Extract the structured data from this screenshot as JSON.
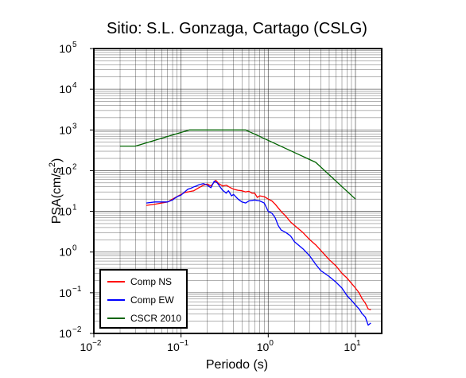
{
  "chart_data": {
    "type": "line",
    "title": "Sitio: S.L. Gonzaga, Cartago (CSLG)",
    "xlabel": "Periodo (s)",
    "ylabel": "PSA(cm/s2)",
    "ylabel_parts": {
      "base": "PSA(cm/s",
      "sup": "2",
      "end": ")"
    },
    "x_scale": "log",
    "y_scale": "log",
    "xlim": [
      0.01,
      20
    ],
    "ylim": [
      0.01,
      100000
    ],
    "x_ticks": [
      {
        "value": 0.01,
        "base": "10",
        "exp": "−2"
      },
      {
        "value": 0.1,
        "base": "10",
        "exp": "−1"
      },
      {
        "value": 1,
        "base": "10",
        "exp": "0"
      },
      {
        "value": 10,
        "base": "10",
        "exp": "1"
      }
    ],
    "y_ticks": [
      {
        "value": 0.01,
        "base": "10",
        "exp": "−2"
      },
      {
        "value": 0.1,
        "base": "10",
        "exp": "−1"
      },
      {
        "value": 1,
        "base": "10",
        "exp": "0"
      },
      {
        "value": 10,
        "base": "10",
        "exp": "1"
      },
      {
        "value": 100,
        "base": "10",
        "exp": "2"
      },
      {
        "value": 1000,
        "base": "10",
        "exp": "3"
      },
      {
        "value": 10000,
        "base": "10",
        "exp": "4"
      },
      {
        "value": 100000,
        "base": "10",
        "exp": "5"
      }
    ],
    "grid": true,
    "legend_position": "bottom-left",
    "series": [
      {
        "name": "Comp NS",
        "color": "#ff0000",
        "points": [
          [
            0.04,
            14
          ],
          [
            0.05,
            15
          ],
          [
            0.06,
            16
          ],
          [
            0.07,
            17
          ],
          [
            0.08,
            20
          ],
          [
            0.09,
            23
          ],
          [
            0.1,
            26
          ],
          [
            0.11,
            29
          ],
          [
            0.12,
            30
          ],
          [
            0.13,
            31
          ],
          [
            0.14,
            32
          ],
          [
            0.15,
            35
          ],
          [
            0.16,
            38
          ],
          [
            0.18,
            44
          ],
          [
            0.2,
            47
          ],
          [
            0.22,
            42
          ],
          [
            0.24,
            52
          ],
          [
            0.25,
            58
          ],
          [
            0.27,
            48
          ],
          [
            0.3,
            42
          ],
          [
            0.33,
            44
          ],
          [
            0.37,
            38
          ],
          [
            0.4,
            35
          ],
          [
            0.45,
            33
          ],
          [
            0.5,
            32
          ],
          [
            0.55,
            30
          ],
          [
            0.6,
            31
          ],
          [
            0.65,
            28
          ],
          [
            0.7,
            28
          ],
          [
            0.75,
            22
          ],
          [
            0.8,
            24
          ],
          [
            0.9,
            23
          ],
          [
            1.0,
            20
          ],
          [
            1.1,
            18
          ],
          [
            1.2,
            15
          ],
          [
            1.4,
            10
          ],
          [
            1.6,
            7.5
          ],
          [
            1.8,
            5.5
          ],
          [
            2.0,
            4.5
          ],
          [
            2.5,
            3.0
          ],
          [
            3.0,
            2.0
          ],
          [
            3.5,
            1.5
          ],
          [
            4.0,
            1.1
          ],
          [
            5.0,
            0.65
          ],
          [
            6.0,
            0.45
          ],
          [
            7.0,
            0.3
          ],
          [
            8.0,
            0.23
          ],
          [
            9.0,
            0.17
          ],
          [
            10.0,
            0.13
          ],
          [
            11.0,
            0.1
          ],
          [
            12.0,
            0.07
          ],
          [
            13.0,
            0.055
          ],
          [
            14.0,
            0.04
          ],
          [
            15.0,
            0.038
          ]
        ]
      },
      {
        "name": "Comp EW",
        "color": "#0000ff",
        "points": [
          [
            0.04,
            16
          ],
          [
            0.05,
            17
          ],
          [
            0.06,
            17
          ],
          [
            0.07,
            17
          ],
          [
            0.08,
            19
          ],
          [
            0.09,
            23
          ],
          [
            0.1,
            25
          ],
          [
            0.11,
            30
          ],
          [
            0.12,
            35
          ],
          [
            0.13,
            37
          ],
          [
            0.14,
            40
          ],
          [
            0.15,
            42
          ],
          [
            0.16,
            45
          ],
          [
            0.18,
            48
          ],
          [
            0.2,
            44
          ],
          [
            0.22,
            38
          ],
          [
            0.24,
            55
          ],
          [
            0.26,
            50
          ],
          [
            0.28,
            40
          ],
          [
            0.3,
            33
          ],
          [
            0.33,
            28
          ],
          [
            0.35,
            32
          ],
          [
            0.38,
            24
          ],
          [
            0.4,
            26
          ],
          [
            0.45,
            20
          ],
          [
            0.5,
            17
          ],
          [
            0.55,
            16
          ],
          [
            0.6,
            18
          ],
          [
            0.7,
            19
          ],
          [
            0.8,
            18
          ],
          [
            0.9,
            16
          ],
          [
            1.0,
            10
          ],
          [
            1.1,
            9
          ],
          [
            1.2,
            7
          ],
          [
            1.3,
            4.5
          ],
          [
            1.4,
            3.5
          ],
          [
            1.6,
            3
          ],
          [
            1.8,
            2.5
          ],
          [
            2.0,
            1.8
          ],
          [
            2.5,
            1.2
          ],
          [
            3.0,
            0.8
          ],
          [
            3.5,
            0.5
          ],
          [
            4.0,
            0.35
          ],
          [
            5.0,
            0.25
          ],
          [
            6.0,
            0.18
          ],
          [
            7.0,
            0.13
          ],
          [
            8.0,
            0.085
          ],
          [
            9.0,
            0.065
          ],
          [
            10.0,
            0.05
          ],
          [
            11.0,
            0.04
          ],
          [
            12.0,
            0.03
          ],
          [
            13.0,
            0.025
          ],
          [
            14.0,
            0.016
          ],
          [
            15.0,
            0.018
          ]
        ]
      },
      {
        "name": "CSCR 2010",
        "color": "#006400",
        "points": [
          [
            0.02,
            400
          ],
          [
            0.03,
            400
          ],
          [
            0.125,
            1000
          ],
          [
            0.55,
            1000
          ],
          [
            3.5,
            160
          ],
          [
            10.0,
            20
          ]
        ]
      }
    ]
  }
}
